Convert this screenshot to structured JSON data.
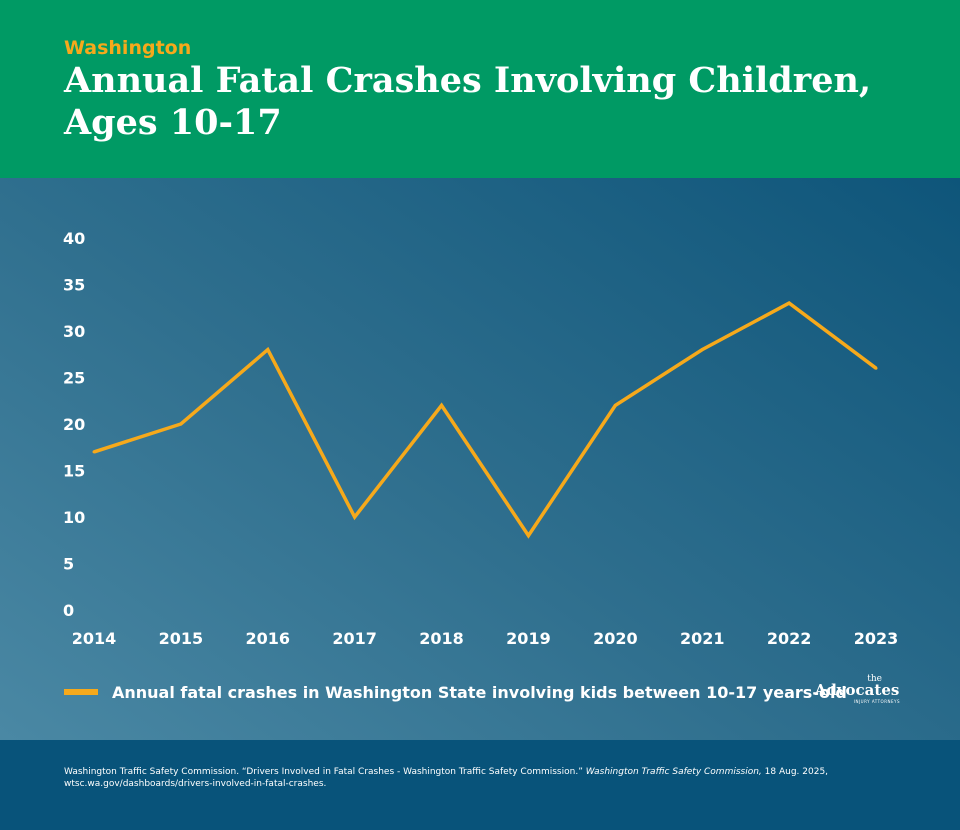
{
  "header": {
    "kicker": "Washington",
    "title": "Annual Fatal Crashes Involving Children, Ages 10-17"
  },
  "chart_data": {
    "type": "line",
    "title": "Annual Fatal Crashes Involving Children, Ages 10-17",
    "categories": [
      "2014",
      "2015",
      "2016",
      "2017",
      "2018",
      "2019",
      "2020",
      "2021",
      "2022",
      "2023"
    ],
    "series": [
      {
        "name": "Annual fatal crashes in Washington State involving kids between 10-17 years-old",
        "values": [
          17,
          20,
          28,
          10,
          22,
          8,
          22,
          28,
          33,
          26
        ]
      }
    ],
    "yticks": [
      0,
      5,
      10,
      15,
      20,
      25,
      30,
      35,
      40
    ],
    "ylim": [
      0,
      40
    ],
    "xlabel": "",
    "ylabel": "",
    "grid": false,
    "legend_position": "bottom-left",
    "line_color": "#f6a91b"
  },
  "legend": {
    "label": "Annual fatal crashes in Washington State involving kids between 10-17 years-old"
  },
  "brand": {
    "the": "the",
    "name": "Advocates",
    "tagline": "INJURY ATTORNEYS"
  },
  "footer": {
    "source_pre": "Washington Traffic Safety Commission. “Drivers Involved in Fatal Crashes - Washington Traffic Safety Commission.” ",
    "source_italic": "Washington Traffic Safety Commission,",
    "source_post": " 18 Aug. 2025, wtsc.wa.gov/dashboards/drivers-involved-in-fatal-crashes."
  },
  "colors": {
    "header_bg": "#009a64",
    "accent": "#f6a91b",
    "footer_bg": "#08537a"
  }
}
